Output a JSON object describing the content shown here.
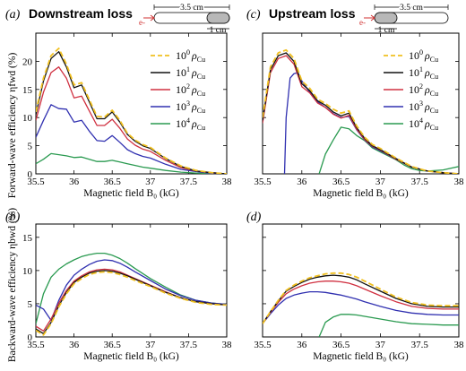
{
  "figure": {
    "shared_xlabel": "Magnetic field B₀ (kG)",
    "shared_xticks": [
      "35.5",
      "36",
      "36.5",
      "37",
      "37.5",
      "38"
    ],
    "ylabel_top": "Forward-wave efficiency ηfwd (%)",
    "ylabel_bottom": "Backward-wave efficiency ηbwd (%)",
    "panel_a": {
      "letter": "(a)",
      "title": "Downstream loss",
      "dim_total": "3.5 cm",
      "dim_loss": "1 cm",
      "electron": "e-"
    },
    "panel_c": {
      "letter": "(c)",
      "title": "Upstream loss",
      "dim_total": "3.5 cm",
      "dim_loss": "1 cm",
      "electron": "e-"
    },
    "panel_b": {
      "letter": "(b)"
    },
    "panel_d": {
      "letter": "(d)"
    },
    "yticks_top": [
      "0",
      "5",
      "10",
      "15",
      "20"
    ],
    "yticks_bottom": [
      "0",
      "5",
      "10",
      "15"
    ],
    "legend": [
      {
        "base": "10",
        "exp": "0",
        "sub": "ρCu"
      },
      {
        "base": "10",
        "exp": "1",
        "sub": "ρCu"
      },
      {
        "base": "10",
        "exp": "2",
        "sub": "ρCu"
      },
      {
        "base": "10",
        "exp": "3",
        "sub": "ρCu"
      },
      {
        "base": "10",
        "exp": "4",
        "sub": "ρCu"
      }
    ],
    "colors": [
      "#f0c020",
      "#111111",
      "#d03040",
      "#3030b0",
      "#2a9a50"
    ]
  },
  "chart_data": [
    {
      "panel": "a",
      "type": "line",
      "xlabel": "Magnetic field B₀ (kG)",
      "ylabel": "Forward-wave efficiency ηfwd (%)",
      "xlim": [
        35.5,
        38
      ],
      "ylim": [
        0,
        25
      ],
      "series": [
        {
          "name": "10^0 ρCu",
          "dashed": true,
          "x": [
            35.5,
            35.6,
            35.7,
            35.8,
            35.9,
            36.0,
            36.1,
            36.2,
            36.3,
            36.4,
            36.5,
            36.6,
            36.7,
            36.8,
            36.9,
            37.0,
            37.2,
            37.4,
            37.6,
            37.8,
            38.0
          ],
          "y": [
            11,
            17,
            21,
            22.3,
            19.5,
            15.8,
            16.2,
            13.2,
            10.2,
            10.1,
            11.3,
            9.5,
            7.2,
            6.0,
            5.2,
            4.7,
            2.8,
            1.4,
            0.6,
            0.2,
            0.0
          ]
        },
        {
          "name": "10^1 ρCu",
          "dashed": false,
          "x": [
            35.5,
            35.6,
            35.7,
            35.8,
            35.9,
            36.0,
            36.1,
            36.2,
            36.3,
            36.4,
            36.5,
            36.6,
            36.7,
            36.8,
            36.9,
            37.0,
            37.2,
            37.4,
            37.6,
            37.8,
            38.0
          ],
          "y": [
            10.5,
            16.5,
            20.5,
            21.7,
            19.0,
            15.3,
            15.8,
            12.8,
            9.8,
            9.8,
            11.0,
            9.2,
            7.0,
            5.8,
            5.0,
            4.5,
            2.7,
            1.3,
            0.5,
            0.2,
            0.0
          ]
        },
        {
          "name": "10^2 ρCu",
          "dashed": false,
          "x": [
            35.5,
            35.6,
            35.7,
            35.8,
            35.9,
            36.0,
            36.1,
            36.2,
            36.3,
            36.4,
            36.5,
            36.6,
            36.7,
            36.8,
            36.9,
            37.0,
            37.2,
            37.4,
            37.6,
            37.8,
            38.0
          ],
          "y": [
            9.5,
            14.5,
            18.0,
            19.0,
            17.0,
            13.5,
            13.8,
            11.2,
            8.6,
            8.6,
            9.7,
            8.1,
            6.2,
            5.1,
            4.4,
            4.0,
            2.4,
            1.1,
            0.5,
            0.2,
            0.0
          ]
        },
        {
          "name": "10^3 ρCu",
          "dashed": false,
          "x": [
            35.5,
            35.6,
            35.7,
            35.8,
            35.9,
            36.0,
            36.1,
            36.2,
            36.3,
            36.4,
            36.5,
            36.6,
            36.7,
            36.8,
            36.9,
            37.0,
            37.2,
            37.4,
            37.6,
            37.8,
            38.0
          ],
          "y": [
            6.5,
            9.5,
            12.3,
            11.6,
            11.5,
            9.2,
            9.5,
            7.6,
            5.9,
            5.8,
            6.8,
            5.6,
            4.3,
            3.6,
            3.1,
            2.8,
            1.7,
            0.8,
            0.4,
            0.1,
            0.0
          ]
        },
        {
          "name": "10^4 ρCu",
          "dashed": false,
          "x": [
            35.5,
            35.6,
            35.7,
            35.8,
            35.9,
            36.0,
            36.1,
            36.2,
            36.3,
            36.4,
            36.5,
            36.6,
            36.7,
            36.8,
            36.9,
            37.0,
            37.2,
            37.4,
            37.6,
            37.8,
            38.0
          ],
          "y": [
            1.8,
            2.6,
            3.6,
            3.4,
            3.2,
            2.9,
            3.0,
            2.6,
            2.2,
            2.2,
            2.4,
            2.1,
            1.8,
            1.5,
            1.2,
            1.0,
            0.6,
            0.3,
            0.15,
            0.05,
            0.0
          ]
        }
      ]
    },
    {
      "panel": "b",
      "type": "line",
      "xlabel": "Magnetic field B₀ (kG)",
      "ylabel": "Backward-wave efficiency ηbwd (%)",
      "xlim": [
        35.5,
        38
      ],
      "ylim": [
        0,
        17
      ],
      "series": [
        {
          "name": "10^0 ρCu",
          "dashed": true,
          "x": [
            35.5,
            35.6,
            35.7,
            35.8,
            35.9,
            36.0,
            36.1,
            36.2,
            36.3,
            36.4,
            36.5,
            36.6,
            36.7,
            36.8,
            37.0,
            37.2,
            37.4,
            37.6,
            37.8,
            38.0
          ],
          "y": [
            1.0,
            0.3,
            2.0,
            4.5,
            6.5,
            8.0,
            8.8,
            9.4,
            9.7,
            9.8,
            9.7,
            9.4,
            9.0,
            8.5,
            7.6,
            6.6,
            5.8,
            5.2,
            4.9,
            4.8
          ]
        },
        {
          "name": "10^1 ρCu",
          "dashed": false,
          "x": [
            35.5,
            35.6,
            35.7,
            35.8,
            35.9,
            36.0,
            36.1,
            36.2,
            36.3,
            36.4,
            36.5,
            36.6,
            36.7,
            36.8,
            37.0,
            37.2,
            37.4,
            37.6,
            37.8,
            38.0
          ],
          "y": [
            1.2,
            0.5,
            2.2,
            4.7,
            6.7,
            8.2,
            9.0,
            9.6,
            9.9,
            10.0,
            9.9,
            9.6,
            9.2,
            8.7,
            7.7,
            6.7,
            5.9,
            5.3,
            5.0,
            4.8
          ]
        },
        {
          "name": "10^2 ρCu",
          "dashed": false,
          "x": [
            35.5,
            35.6,
            35.7,
            35.8,
            35.9,
            36.0,
            36.1,
            36.2,
            36.3,
            36.4,
            36.5,
            36.6,
            36.7,
            36.8,
            37.0,
            37.2,
            37.4,
            37.6,
            37.8,
            38.0
          ],
          "y": [
            1.6,
            0.9,
            2.7,
            5.1,
            7.0,
            8.4,
            9.2,
            9.8,
            10.1,
            10.2,
            10.1,
            9.8,
            9.3,
            8.8,
            7.8,
            6.8,
            5.9,
            5.3,
            5.0,
            4.8
          ]
        },
        {
          "name": "10^3 ρCu",
          "dashed": false,
          "x": [
            35.5,
            35.6,
            35.7,
            35.8,
            35.9,
            36.0,
            36.1,
            36.2,
            36.3,
            36.4,
            36.5,
            36.6,
            36.7,
            36.8,
            37.0,
            37.2,
            37.4,
            37.6,
            37.8,
            38.0
          ],
          "y": [
            4.8,
            4.2,
            2.5,
            5.5,
            7.8,
            9.3,
            10.2,
            10.9,
            11.4,
            11.6,
            11.5,
            11.1,
            10.5,
            9.8,
            8.5,
            7.2,
            6.2,
            5.5,
            5.1,
            4.9
          ]
        },
        {
          "name": "10^4 ρCu",
          "dashed": false,
          "x": [
            35.5,
            35.6,
            35.7,
            35.8,
            35.9,
            36.0,
            36.1,
            36.2,
            36.3,
            36.4,
            36.5,
            36.6,
            36.7,
            36.8,
            37.0,
            37.2,
            37.4,
            37.6,
            37.8,
            38.0
          ],
          "y": [
            2.0,
            6.5,
            9.0,
            10.2,
            11.0,
            11.6,
            12.1,
            12.4,
            12.6,
            12.6,
            12.3,
            11.8,
            11.1,
            10.3,
            8.8,
            7.5,
            6.3,
            5.5,
            5.1,
            4.9
          ]
        }
      ]
    },
    {
      "panel": "c",
      "type": "line",
      "xlabel": "Magnetic field B₀ (kG)",
      "ylabel": "Forward-wave efficiency ηfwd (%)",
      "xlim": [
        35.5,
        38
      ],
      "ylim": [
        0,
        25
      ],
      "series": [
        {
          "name": "10^0 ρCu",
          "dashed": true,
          "x": [
            35.5,
            35.6,
            35.7,
            35.8,
            35.9,
            36.0,
            36.1,
            36.2,
            36.3,
            36.4,
            36.5,
            36.6,
            36.7,
            36.8,
            36.9,
            37.0,
            37.2,
            37.4,
            37.6,
            37.8,
            38.0
          ],
          "y": [
            10,
            19,
            21.5,
            22.0,
            20.5,
            16.5,
            15.2,
            13.3,
            12.5,
            11.5,
            10.8,
            11.2,
            8.5,
            6.5,
            5.2,
            4.5,
            2.8,
            1.3,
            0.5,
            0.2,
            0.0
          ]
        },
        {
          "name": "10^1 ρCu",
          "dashed": false,
          "x": [
            35.5,
            35.6,
            35.7,
            35.8,
            35.9,
            36.0,
            36.1,
            36.2,
            36.3,
            36.4,
            36.5,
            36.6,
            36.7,
            36.8,
            36.9,
            37.0,
            37.2,
            37.4,
            37.6,
            37.8,
            38.0
          ],
          "y": [
            9.5,
            18.5,
            21.0,
            21.5,
            20.0,
            16.0,
            14.8,
            13.0,
            12.2,
            11.0,
            10.3,
            10.8,
            8.2,
            6.3,
            5.0,
            4.3,
            2.7,
            1.2,
            0.5,
            0.2,
            0.0
          ]
        },
        {
          "name": "10^2 ρCu",
          "dashed": false,
          "x": [
            35.5,
            35.6,
            35.7,
            35.8,
            35.9,
            36.0,
            36.1,
            36.2,
            36.3,
            36.4,
            36.5,
            36.6,
            36.7,
            36.8,
            36.9,
            37.0,
            37.2,
            37.4,
            37.6,
            37.8,
            38.0
          ],
          "y": [
            9.0,
            18.0,
            20.5,
            21.0,
            19.5,
            15.5,
            14.4,
            12.6,
            11.8,
            10.6,
            9.9,
            10.4,
            7.9,
            6.1,
            4.9,
            4.2,
            2.6,
            1.2,
            0.5,
            0.2,
            0.0
          ]
        },
        {
          "name": "10^3 ρCu",
          "dashed": false,
          "x": [
            35.78,
            35.8,
            35.85,
            35.9,
            35.95,
            36.0,
            36.1,
            36.2,
            36.3,
            36.4,
            36.5,
            36.6,
            36.7,
            36.8,
            36.9,
            37.0,
            37.2,
            37.4,
            37.6,
            37.8,
            38.0
          ],
          "y": [
            0.0,
            10.0,
            17.0,
            17.8,
            18.0,
            16.5,
            14.5,
            12.8,
            11.8,
            10.7,
            10.0,
            10.2,
            7.8,
            6.0,
            4.8,
            4.1,
            2.6,
            1.2,
            0.5,
            0.2,
            0.0
          ]
        },
        {
          "name": "10^4 ρCu",
          "dashed": false,
          "x": [
            36.22,
            36.3,
            36.4,
            36.5,
            36.6,
            36.7,
            36.8,
            36.9,
            37.0,
            37.1,
            37.2,
            37.3,
            37.4,
            37.5,
            37.6,
            37.8,
            38.0
          ],
          "y": [
            0.0,
            3.5,
            6.0,
            8.3,
            8.0,
            6.8,
            5.9,
            4.6,
            3.9,
            3.2,
            2.5,
            1.6,
            0.9,
            0.6,
            0.5,
            0.7,
            1.3
          ]
        }
      ]
    },
    {
      "panel": "d",
      "type": "line",
      "xlabel": "Magnetic field B₀ (kG)",
      "ylabel": "Backward-wave efficiency ηbwd (%)",
      "xlim": [
        35.5,
        38
      ],
      "ylim": [
        0,
        17
      ],
      "series": [
        {
          "name": "10^0 ρCu",
          "dashed": true,
          "x": [
            35.5,
            35.6,
            35.7,
            35.8,
            35.9,
            36.0,
            36.1,
            36.2,
            36.3,
            36.4,
            36.5,
            36.6,
            36.7,
            36.8,
            37.0,
            37.2,
            37.4,
            37.6,
            37.8,
            38.0
          ],
          "y": [
            2.0,
            3.8,
            5.5,
            7.0,
            7.8,
            8.4,
            8.9,
            9.2,
            9.5,
            9.6,
            9.6,
            9.4,
            9.0,
            8.4,
            7.2,
            6.0,
            5.2,
            4.8,
            4.7,
            4.7
          ]
        },
        {
          "name": "10^1 ρCu",
          "dashed": false,
          "x": [
            35.5,
            35.6,
            35.7,
            35.8,
            35.9,
            36.0,
            36.1,
            36.2,
            36.3,
            36.4,
            36.5,
            36.6,
            36.7,
            36.8,
            37.0,
            37.2,
            37.4,
            37.6,
            37.8,
            38.0
          ],
          "y": [
            2.0,
            3.8,
            5.4,
            6.9,
            7.6,
            8.2,
            8.7,
            9.0,
            9.2,
            9.3,
            9.2,
            9.0,
            8.6,
            8.0,
            6.9,
            5.8,
            5.0,
            4.6,
            4.5,
            4.5
          ]
        },
        {
          "name": "10^2 ρCu",
          "dashed": false,
          "x": [
            35.5,
            35.6,
            35.7,
            35.8,
            35.9,
            36.0,
            36.1,
            36.2,
            36.3,
            36.4,
            36.5,
            36.6,
            36.7,
            36.8,
            37.0,
            37.2,
            37.4,
            37.6,
            37.8,
            38.0
          ],
          "y": [
            2.0,
            3.7,
            5.2,
            6.5,
            7.2,
            7.7,
            8.1,
            8.3,
            8.4,
            8.4,
            8.3,
            8.1,
            7.7,
            7.2,
            6.2,
            5.3,
            4.6,
            4.3,
            4.2,
            4.2
          ]
        },
        {
          "name": "10^3 ρCu",
          "dashed": false,
          "x": [
            35.5,
            35.6,
            35.7,
            35.8,
            35.9,
            36.0,
            36.1,
            36.2,
            36.3,
            36.4,
            36.5,
            36.6,
            36.7,
            36.8,
            37.0,
            37.2,
            37.4,
            37.6,
            37.8,
            38.0
          ],
          "y": [
            2.0,
            3.5,
            4.8,
            5.8,
            6.3,
            6.6,
            6.8,
            6.8,
            6.7,
            6.5,
            6.3,
            6.0,
            5.7,
            5.3,
            4.6,
            4.0,
            3.6,
            3.4,
            3.3,
            3.3
          ]
        },
        {
          "name": "10^4 ρCu",
          "dashed": false,
          "x": [
            36.22,
            36.3,
            36.4,
            36.5,
            36.6,
            36.7,
            36.8,
            37.0,
            37.2,
            37.4,
            37.6,
            37.8,
            38.0
          ],
          "y": [
            0.0,
            2.2,
            3.0,
            3.4,
            3.4,
            3.3,
            3.1,
            2.7,
            2.3,
            2.0,
            1.9,
            1.8,
            1.8
          ]
        }
      ]
    }
  ]
}
